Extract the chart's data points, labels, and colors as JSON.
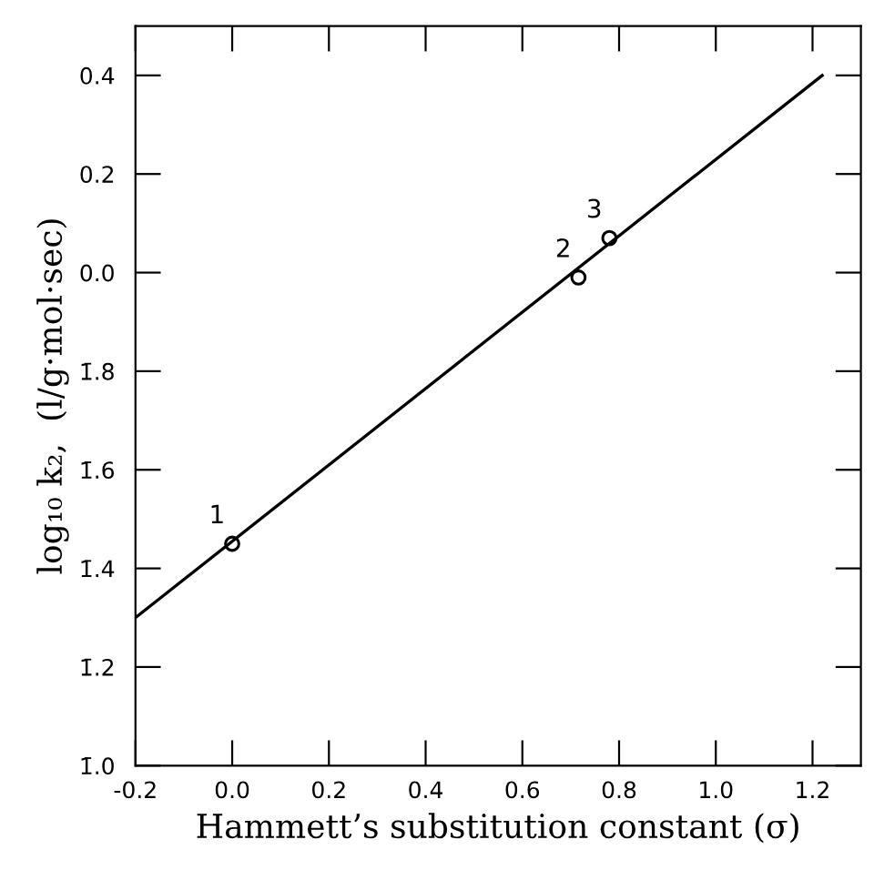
{
  "chart_data": {
    "type": "scatter",
    "xlabel": "Hammett’s substitution constant (σ)",
    "ylabel": "log₁₀ k₂,  (l/g·mol·sec)",
    "series": [
      {
        "color": "#000000",
        "marker": "circle",
        "x": [
          0.0,
          0.716,
          0.78
        ],
        "values": [
          -0.55,
          -0.01,
          0.07
        ]
      },
      {
        "type": "line",
        "color": "#000000",
        "marker": "none",
        "line_style": "solid",
        "x": [
          -0.2,
          1.22
        ],
        "values": [
          -0.7,
          0.4
        ]
      }
    ],
    "annotations": [
      {
        "text": "1",
        "x": 0.0,
        "y": -0.55
      },
      {
        "text": "2",
        "x": 0.716,
        "y": -0.01
      },
      {
        "text": "3",
        "x": 0.78,
        "y": 0.07
      }
    ],
    "xlim": [
      -0.2,
      1.3
    ],
    "ylim": [
      -1.0,
      0.5
    ],
    "xticks": [
      -0.2,
      {
        "value": 0.0,
        "label": "0.0"
      },
      0.2,
      0.4,
      0.6,
      0.8,
      {
        "value": 1.0,
        "label": "1.0"
      },
      1.2
    ],
    "yticks": [
      {
        "value": -1.0,
        "label": "1̄.0"
      },
      {
        "value": -0.8,
        "label": "1̄.2"
      },
      {
        "value": -0.6,
        "label": "1̄.4"
      },
      {
        "value": -0.4,
        "label": "1̄.6"
      },
      {
        "value": -0.2,
        "label": "1̄.8"
      },
      {
        "value": 0.0,
        "label": "0.0"
      },
      0.2,
      0.4
    ],
    "grid": false,
    "legend": false
  }
}
